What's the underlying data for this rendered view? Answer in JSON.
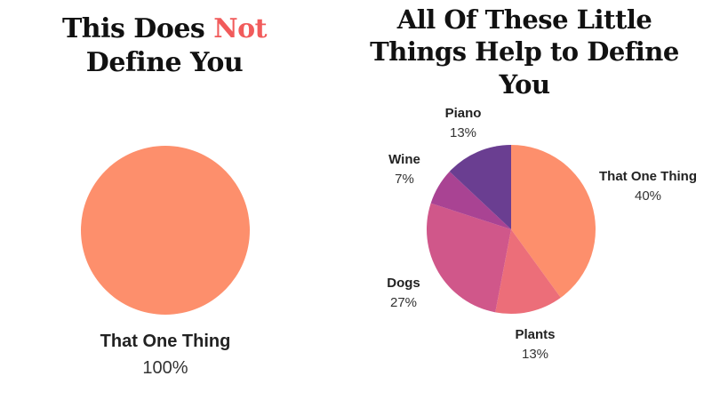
{
  "colors": {
    "accent": "#f15b5b",
    "slices": [
      "#fd8f6c",
      "#ec6e79",
      "#d0578a",
      "#a94393",
      "#6a3e91"
    ]
  },
  "left_title": {
    "before": "This Does ",
    "accent": "Not",
    "after": " Define You"
  },
  "right_title": {
    "text": "All Of These Little Things Help to Define You"
  },
  "chart_data": [
    {
      "type": "pie",
      "title": "This Does Not Define You",
      "slices": [
        {
          "label": "That One Thing",
          "value": 100,
          "display": "100%",
          "color": "#fd8f6c"
        }
      ]
    },
    {
      "type": "pie",
      "title": "All Of These Little Things Help to Define You",
      "slices": [
        {
          "label": "That One Thing",
          "value": 40,
          "display": "40%",
          "color": "#fd8f6c"
        },
        {
          "label": "Plants",
          "value": 13,
          "display": "13%",
          "color": "#ec6e79"
        },
        {
          "label": "Dogs",
          "value": 27,
          "display": "27%",
          "color": "#d0578a"
        },
        {
          "label": "Wine",
          "value": 7,
          "display": "7%",
          "color": "#a94393"
        },
        {
          "label": "Piano",
          "value": 13,
          "display": "13%",
          "color": "#6a3e91"
        }
      ]
    }
  ]
}
